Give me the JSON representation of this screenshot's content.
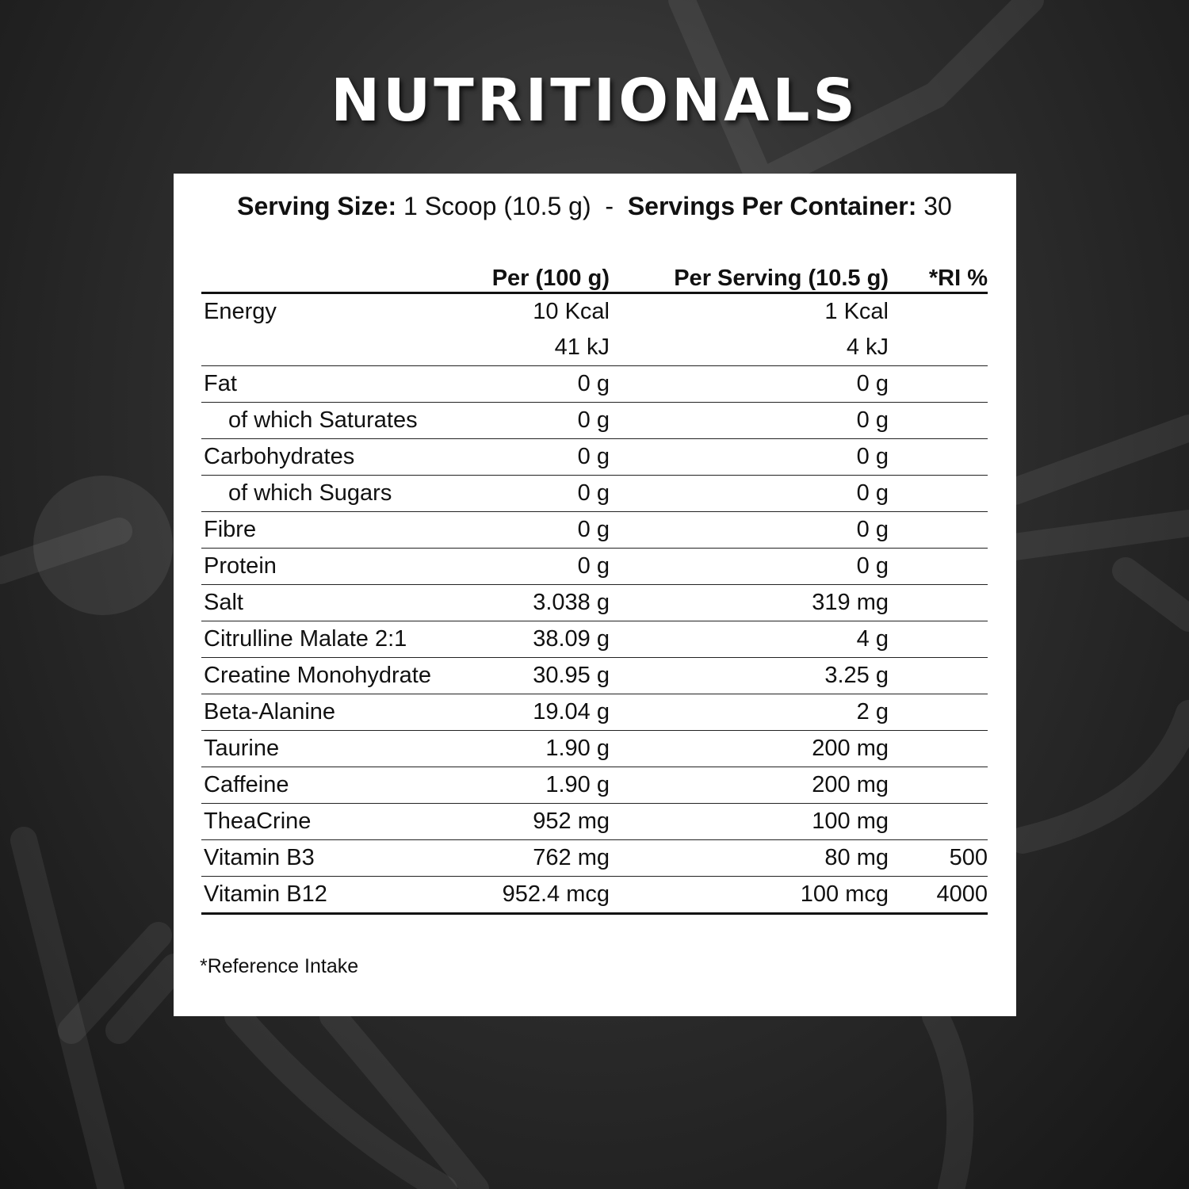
{
  "title": "NUTRITIONALS",
  "serving": {
    "size_label": "Serving Size:",
    "size_value": "1 Scoop (10.5 g)",
    "separator": "-",
    "per_container_label": "Servings Per Container:",
    "per_container_value": "30"
  },
  "table": {
    "headers": [
      "",
      "Per (100 g)",
      "Per Serving (10.5 g)",
      "*RI %"
    ],
    "rows": [
      {
        "name": "Energy",
        "per100": "10 Kcal",
        "serving": "1 Kcal",
        "ri": ""
      },
      {
        "name": "",
        "per100": "41 kJ",
        "serving": "4 kJ",
        "ri": ""
      },
      {
        "name": "Fat",
        "per100": "0 g",
        "serving": "0 g",
        "ri": ""
      },
      {
        "name": "of which Saturates",
        "per100": "0 g",
        "serving": "0 g",
        "ri": ""
      },
      {
        "name": "Carbohydrates",
        "per100": "0 g",
        "serving": "0 g",
        "ri": ""
      },
      {
        "name": "of which Sugars",
        "per100": "0 g",
        "serving": "0 g",
        "ri": ""
      },
      {
        "name": "Fibre",
        "per100": "0 g",
        "serving": "0 g",
        "ri": ""
      },
      {
        "name": "Protein",
        "per100": "0 g",
        "serving": "0 g",
        "ri": ""
      },
      {
        "name": "Salt",
        "per100": "3.038 g",
        "serving": "319 mg",
        "ri": ""
      },
      {
        "name": "Citrulline Malate 2:1",
        "per100": "38.09 g",
        "serving": "4 g",
        "ri": ""
      },
      {
        "name": "Creatine Monohydrate",
        "per100": "30.95 g",
        "serving": "3.25 g",
        "ri": ""
      },
      {
        "name": "Beta-Alanine",
        "per100": "19.04 g",
        "serving": "2 g",
        "ri": ""
      },
      {
        "name": "Taurine",
        "per100": "1.90 g",
        "serving": "200 mg",
        "ri": ""
      },
      {
        "name": "Caffeine",
        "per100": "1.90 g",
        "serving": "200 mg",
        "ri": ""
      },
      {
        "name": "TheaCrine",
        "per100": "952 mg",
        "serving": "100 mg",
        "ri": ""
      },
      {
        "name": "Vitamin B3",
        "per100": "762 mg",
        "serving": "80 mg",
        "ri": "500"
      },
      {
        "name": "Vitamin B12",
        "per100": "952.4 mcg",
        "serving": "100 mcg",
        "ri": "4000"
      }
    ]
  },
  "footnote": "*Reference Intake"
}
